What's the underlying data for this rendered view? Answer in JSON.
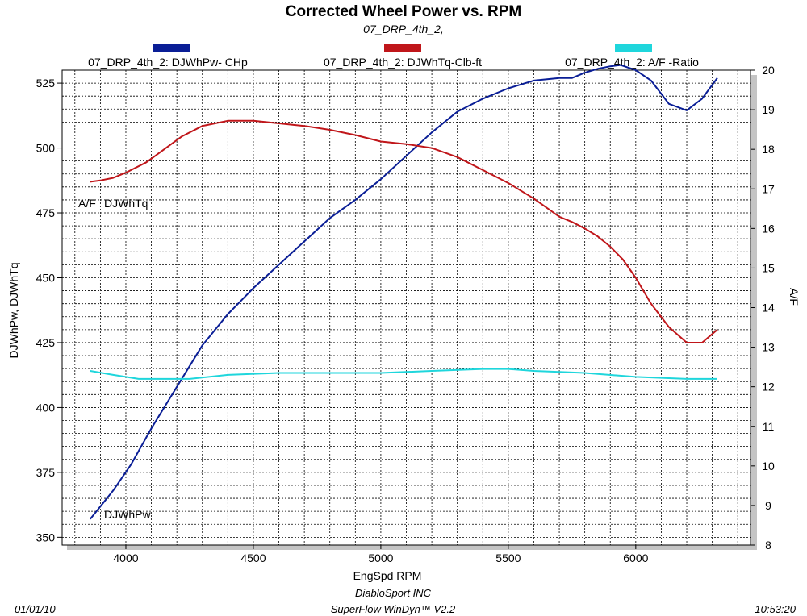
{
  "chart_data": {
    "type": "line",
    "title": "Corrected Wheel Power vs. RPM",
    "subtitle": "07_DRP_4th_2,",
    "xlabel": "EngSpd  RPM",
    "ylabel_left": "DJWhPw,  DJWhTq",
    "ylabel_right": "A/F",
    "xlim": [
      3750,
      6450
    ],
    "ylim_left": [
      347,
      530
    ],
    "ylim_right": [
      8,
      20
    ],
    "x_ticks": [
      "4000",
      "4500",
      "5000",
      "5500",
      "6000"
    ],
    "x_tick_values": [
      4000,
      4500,
      5000,
      5500,
      6000
    ],
    "y_left_ticks": [
      "350",
      "375",
      "400",
      "425",
      "450",
      "475",
      "500",
      "525"
    ],
    "y_left_tick_values": [
      350,
      375,
      400,
      425,
      450,
      475,
      500,
      525
    ],
    "y_right_ticks": [
      "8",
      "9",
      "10",
      "11",
      "12",
      "13",
      "14",
      "15",
      "16",
      "17",
      "18",
      "19",
      "20"
    ],
    "y_right_tick_values": [
      8,
      9,
      10,
      11,
      12,
      13,
      14,
      15,
      16,
      17,
      18,
      19,
      20
    ],
    "grid": true,
    "legend_position": "top",
    "series": [
      {
        "name": "07_DRP_4th_2: DJWhPw- CHp",
        "label": "DJWhPw",
        "color": "#0a1e96",
        "axis": "left",
        "x": [
          3860,
          3950,
          4020,
          4100,
          4200,
          4300,
          4400,
          4500,
          4600,
          4700,
          4800,
          4900,
          5000,
          5100,
          5200,
          5300,
          5400,
          5500,
          5600,
          5700,
          5750,
          5800,
          5850,
          5900,
          5940,
          6000,
          6060,
          6130,
          6200,
          6260,
          6320
        ],
        "y": [
          357,
          368,
          378,
          392,
          408,
          424,
          436,
          446,
          455,
          464,
          473,
          480,
          488,
          497,
          506,
          514,
          519,
          523,
          526,
          527,
          527,
          529,
          530.5,
          531.5,
          532,
          530,
          526,
          517,
          514.5,
          519,
          527
        ]
      },
      {
        "name": "07_DRP_4th_2: DJWhTq-Clb-ft",
        "label": "DJWhTq",
        "color": "#c0161a",
        "axis": "left",
        "x": [
          3860,
          3900,
          3950,
          4000,
          4080,
          4150,
          4220,
          4300,
          4400,
          4500,
          4600,
          4700,
          4800,
          4900,
          5000,
          5100,
          5200,
          5300,
          5400,
          5500,
          5600,
          5700,
          5750,
          5800,
          5850,
          5900,
          5950,
          6000,
          6060,
          6130,
          6200,
          6260,
          6320
        ],
        "y": [
          487,
          487.5,
          488.5,
          490.5,
          494.5,
          499.5,
          504.5,
          508.5,
          510.5,
          510.5,
          509.5,
          508.5,
          507,
          505,
          502.5,
          501.5,
          500,
          496.5,
          491.5,
          486.5,
          480.5,
          473.5,
          471.5,
          469,
          466,
          462,
          457,
          450,
          440,
          431,
          425,
          425,
          430
        ]
      },
      {
        "name": "07_DRP_4th_2:  A/F  -Ratio",
        "label": "A/F",
        "color": "#1fd6dc",
        "axis": "right",
        "x": [
          3860,
          3950,
          4050,
          4150,
          4250,
          4400,
          4600,
          4800,
          5000,
          5200,
          5400,
          5500,
          5600,
          5800,
          6000,
          6200,
          6320
        ],
        "y": [
          12.4,
          12.3,
          12.2,
          12.2,
          12.2,
          12.3,
          12.35,
          12.35,
          12.35,
          12.4,
          12.45,
          12.45,
          12.4,
          12.35,
          12.25,
          12.2,
          12.2
        ]
      }
    ]
  },
  "footer": {
    "date": "01/01/10",
    "company": "DiabloSport INC",
    "software": "SuperFlow WinDyn™ V2.2",
    "time": "10:53:20"
  }
}
